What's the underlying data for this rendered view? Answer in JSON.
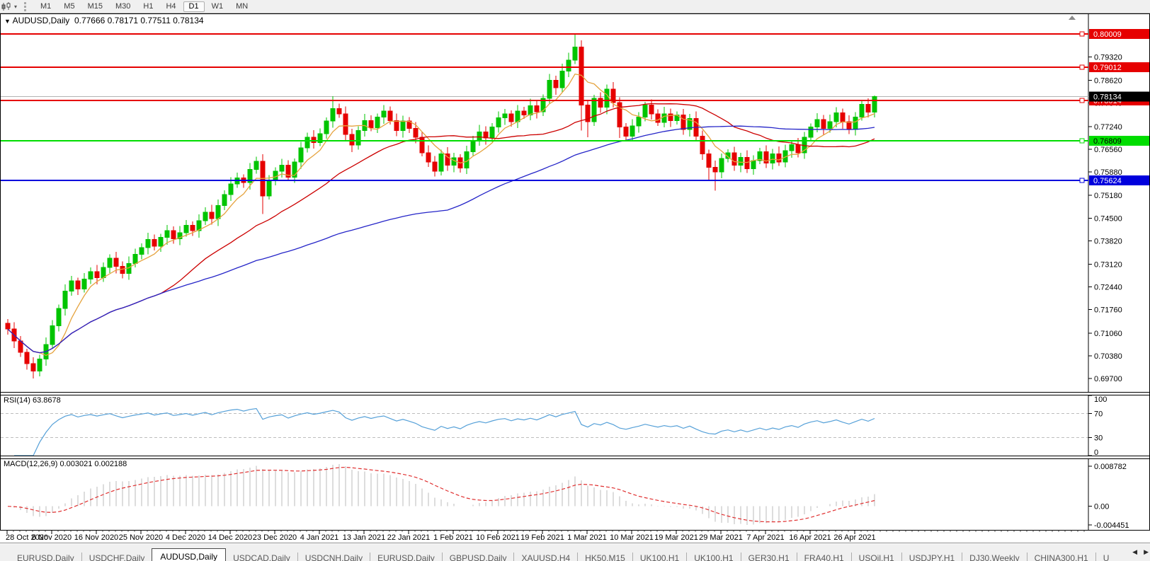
{
  "toolbar": {
    "chevron_icon": "▾",
    "timeframes": [
      "M1",
      "M5",
      "M15",
      "M30",
      "H1",
      "H4",
      "D1",
      "W1",
      "MN"
    ],
    "active_timeframe": "D1"
  },
  "chart": {
    "collapse_icon": "▼",
    "symbol_label": "AUDUSD,Daily",
    "ohlc_label": "0.77666 0.78171 0.77511 0.78134",
    "current_price_label": "0.78134"
  },
  "rsi": {
    "label": "RSI(14) 63.8678",
    "period": 14,
    "axis_ticks": [
      100,
      70,
      30,
      0
    ],
    "dashed_levels": [
      70,
      30
    ]
  },
  "macd": {
    "label": "MACD(12,26,9) 0.003021 0.002188",
    "fast": 12,
    "slow": 26,
    "signal": 9,
    "axis_ticks": [
      "0.008782",
      "0.00",
      "-0.004451"
    ]
  },
  "chart_data": {
    "type": "candlestick",
    "title": "AUDUSD,Daily",
    "y_range": [
      0.693,
      0.806
    ],
    "y_ticks": [
      "0.79320",
      "0.78620",
      "0.77940",
      "0.77240",
      "0.76560",
      "0.75880",
      "0.75180",
      "0.74500",
      "0.73820",
      "0.73120",
      "0.72440",
      "0.71760",
      "0.71060",
      "0.70380",
      "0.69700"
    ],
    "x_ticks": [
      "28 Oct 2020",
      "6 Nov 2020",
      "16 Nov 2020",
      "25 Nov 2020",
      "4 Dec 2020",
      "14 Dec 2020",
      "23 Dec 2020",
      "4 Jan 2021",
      "13 Jan 2021",
      "22 Jan 2021",
      "1 Feb 2021",
      "10 Feb 2021",
      "19 Feb 2021",
      "1 Mar 2021",
      "10 Mar 2021",
      "19 Mar 2021",
      "29 Mar 2021",
      "7 Apr 2021",
      "16 Apr 2021",
      "26 Apr 2021"
    ],
    "tick_every": 7,
    "open_first": 0.7135,
    "closes": [
      0.7118,
      0.7082,
      0.7048,
      0.7015,
      0.6992,
      0.7028,
      0.7072,
      0.7128,
      0.718,
      0.7232,
      0.7262,
      0.7238,
      0.7268,
      0.729,
      0.7272,
      0.7302,
      0.733,
      0.7306,
      0.7284,
      0.7314,
      0.7342,
      0.7362,
      0.7386,
      0.7366,
      0.7392,
      0.7412,
      0.7388,
      0.7406,
      0.7428,
      0.7412,
      0.7442,
      0.7468,
      0.7448,
      0.7488,
      0.752,
      0.7552,
      0.757,
      0.7556,
      0.7596,
      0.762,
      0.7516,
      0.7562,
      0.759,
      0.7608,
      0.7572,
      0.7618,
      0.766,
      0.7692,
      0.7676,
      0.7702,
      0.774,
      0.7778,
      0.7762,
      0.77,
      0.7668,
      0.7712,
      0.7742,
      0.772,
      0.7752,
      0.777,
      0.7742,
      0.7712,
      0.774,
      0.7718,
      0.7692,
      0.7645,
      0.7618,
      0.759,
      0.7642,
      0.7608,
      0.763,
      0.76,
      0.7648,
      0.7682,
      0.7708,
      0.769,
      0.7722,
      0.775,
      0.7762,
      0.7738,
      0.777,
      0.7758,
      0.7786,
      0.7768,
      0.7808,
      0.7862,
      0.784,
      0.789,
      0.7922,
      0.7962,
      0.7788,
      0.7738,
      0.7808,
      0.7782,
      0.7836,
      0.7795,
      0.7722,
      0.7695,
      0.7726,
      0.7752,
      0.7788,
      0.7762,
      0.7736,
      0.7762,
      0.7742,
      0.7758,
      0.7715,
      0.7748,
      0.7695,
      0.7642,
      0.7602,
      0.7588,
      0.7628,
      0.7645,
      0.7608,
      0.7632,
      0.7598,
      0.7622,
      0.7648,
      0.7615,
      0.7642,
      0.7618,
      0.7652,
      0.767,
      0.7645,
      0.7692,
      0.7722,
      0.7745,
      0.7718,
      0.7738,
      0.7765,
      0.7738,
      0.7715,
      0.7752,
      0.779,
      0.77666,
      0.78134
    ],
    "wick_overrides": {
      "4": {
        "low": 0.697
      },
      "40": {
        "low": 0.7462
      },
      "51": {
        "high": 0.7815
      },
      "67": {
        "low": 0.7574
      },
      "88": {
        "high": 0.7945
      },
      "89": {
        "high": 0.8001
      },
      "90": {
        "low": 0.7712
      },
      "91": {
        "low": 0.7692
      },
      "96": {
        "low": 0.769
      },
      "110": {
        "low": 0.7562
      },
      "111": {
        "low": 0.7532
      },
      "136": {
        "high": 0.78171,
        "low": 0.77511
      }
    },
    "last_candle": {
      "open": 0.77666,
      "high": 0.78171,
      "low": 0.77511,
      "close": 0.78134
    },
    "hlines": [
      {
        "price": 0.80009,
        "label": "0.80009",
        "color": "#e60000",
        "text": "#ffffff"
      },
      {
        "price": 0.79012,
        "label": "0.79012",
        "color": "#e60000",
        "text": "#ffffff"
      },
      {
        "price": 0.78014,
        "label": "0.78014",
        "color": "#e60000",
        "text": "#ffffff"
      },
      {
        "price": 0.76809,
        "label": "0.76809",
        "color": "#00dd00",
        "text": "#000000"
      },
      {
        "price": 0.75624,
        "label": "0.75624",
        "color": "#0000dd",
        "text": "#ffffff"
      }
    ],
    "current_price": 0.78134,
    "moving_averages": [
      {
        "name": "ma-fast",
        "period": 6,
        "color": "#e5a33e"
      },
      {
        "name": "ma-mid",
        "period": 25,
        "color": "#cc0000"
      },
      {
        "name": "ma-slow",
        "period": 70,
        "color": "#2525c8"
      }
    ],
    "legend_position": "none",
    "grid": "off"
  },
  "tabs": [
    {
      "label": "EURUSD,Daily",
      "active": false
    },
    {
      "label": "USDCHF,Daily",
      "active": false
    },
    {
      "label": "AUDUSD,Daily",
      "active": true
    },
    {
      "label": "USDCAD,Daily",
      "active": false
    },
    {
      "label": "USDCNH,Daily",
      "active": false
    },
    {
      "label": "EURUSD,Daily",
      "active": false
    },
    {
      "label": "GBPUSD,Daily",
      "active": false
    },
    {
      "label": "XAUUSD,H4",
      "active": false
    },
    {
      "label": "HK50,M15",
      "active": false
    },
    {
      "label": "UK100,H1",
      "active": false
    },
    {
      "label": "UK100,H1",
      "active": false
    },
    {
      "label": "GER30,H1",
      "active": false
    },
    {
      "label": "FRA40,H1",
      "active": false
    },
    {
      "label": "USOil,H1",
      "active": false
    },
    {
      "label": "USDJPY,H1",
      "active": false
    },
    {
      "label": "DJ30,Weekly",
      "active": false
    },
    {
      "label": "CHINA300,H1",
      "active": false
    },
    {
      "label": "U",
      "active": false,
      "truncated": true
    }
  ],
  "tabbar": {
    "scroll_left_icon": "◀",
    "scroll_right_icon": "▶"
  },
  "colors": {
    "up": "#00c400",
    "down": "#e60000",
    "current_price_line": "#b3b3b3",
    "current_price_badge": "#000000",
    "rsi_line": "#55a0d8",
    "dashed_level": "#bdbdbd",
    "macd_hist": "#bbbbbb",
    "macd_signal": "#e03030",
    "axis": "#000000"
  }
}
